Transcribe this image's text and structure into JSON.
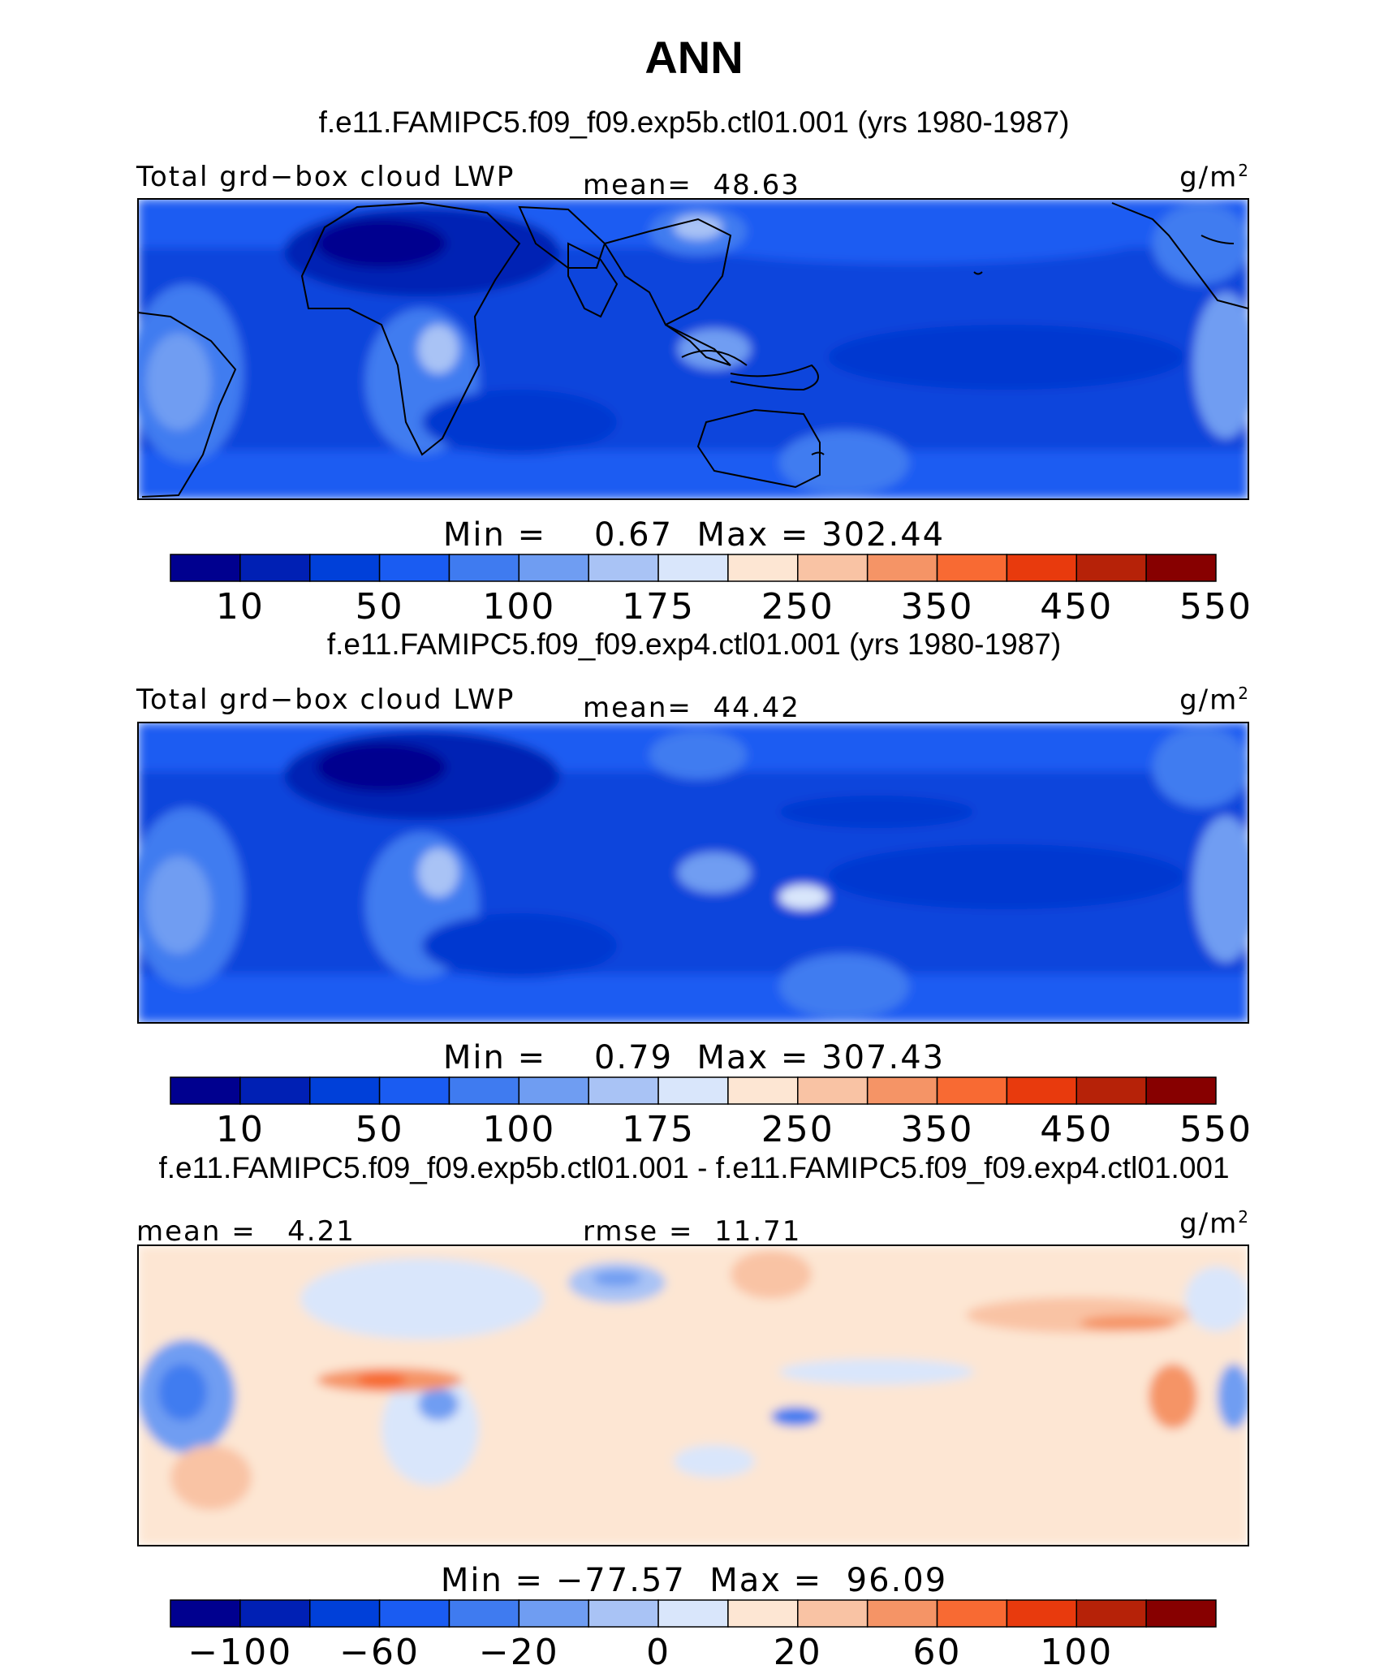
{
  "title": "ANN",
  "colors": [
    "#00008f",
    "#0020b4",
    "#0040d9",
    "#1a5cf2",
    "#3f7bf0",
    "#6f9df2",
    "#a9c3f5",
    "#d9e6fb",
    "#fde6d3",
    "#f9c3a4",
    "#f59466",
    "#f86a33",
    "#e83a0d",
    "#b62208",
    "#870000"
  ],
  "panels": [
    {
      "case_title": "f.e11.FAMIPC5.f09_f09.exp5b.ctl01.001 (yrs 1980-1987)",
      "variable": "Total grd−box cloud LWP",
      "stat_label": "mean=",
      "stat_value": "48.63",
      "units": "g/m",
      "units_sup": "2",
      "min_label": "Min =",
      "min": "0.67",
      "max_label": "Max =",
      "max": "302.44",
      "ticks": [
        "10",
        "50",
        "100",
        "175",
        "250",
        "350",
        "450",
        "550"
      ]
    },
    {
      "case_title": "f.e11.FAMIPC5.f09_f09.exp4.ctl01.001 (yrs 1980-1987)",
      "variable": "Total grd−box cloud LWP",
      "stat_label": "mean=",
      "stat_value": "44.42",
      "units": "g/m",
      "units_sup": "2",
      "min_label": "Min =",
      "min": "0.79",
      "max_label": "Max =",
      "max": "307.43",
      "ticks": [
        "10",
        "50",
        "100",
        "175",
        "250",
        "350",
        "450",
        "550"
      ]
    },
    {
      "case_title": "f.e11.FAMIPC5.f09_f09.exp5b.ctl01.001 - f.e11.FAMIPC5.f09_f09.exp4.ctl01.001",
      "mean_label": "mean =",
      "mean_value": "4.21",
      "rmse_label": "rmse =",
      "rmse_value": "11.71",
      "units": "g/m",
      "units_sup": "2",
      "min_label": "Min =",
      "min": "−77.57",
      "max_label": "Max =",
      "max": "96.09",
      "ticks": [
        "−100",
        "−60",
        "−20",
        "0",
        "20",
        "60",
        "100"
      ]
    }
  ],
  "chart_data": [
    {
      "type": "heatmap",
      "title": "f.e11.FAMIPC5.f09_f09.exp5b.ctl01.001 (yrs 1980-1987)",
      "field": "Total grd−box cloud LWP",
      "units": "g/m2",
      "mean": 48.63,
      "min": 0.67,
      "max": 302.44,
      "contour_levels": [
        10,
        25,
        50,
        75,
        100,
        125,
        175,
        200,
        250,
        300,
        350,
        400,
        450,
        500,
        550
      ]
    },
    {
      "type": "heatmap",
      "title": "f.e11.FAMIPC5.f09_f09.exp4.ctl01.001 (yrs 1980-1987)",
      "field": "Total grd−box cloud LWP",
      "units": "g/m2",
      "mean": 44.42,
      "min": 0.79,
      "max": 307.43,
      "contour_levels": [
        10,
        25,
        50,
        75,
        100,
        125,
        175,
        200,
        250,
        300,
        350,
        400,
        450,
        500,
        550
      ]
    },
    {
      "type": "heatmap",
      "title": "f.e11.FAMIPC5.f09_f09.exp5b.ctl01.001 - f.e11.FAMIPC5.f09_f09.exp4.ctl01.001",
      "units": "g/m2",
      "mean": 4.21,
      "rmse": 11.71,
      "min": -77.57,
      "max": 96.09,
      "contour_levels": [
        -100,
        -80,
        -60,
        -40,
        -20,
        -10,
        0,
        10,
        20,
        40,
        60,
        80,
        100,
        120
      ]
    }
  ]
}
